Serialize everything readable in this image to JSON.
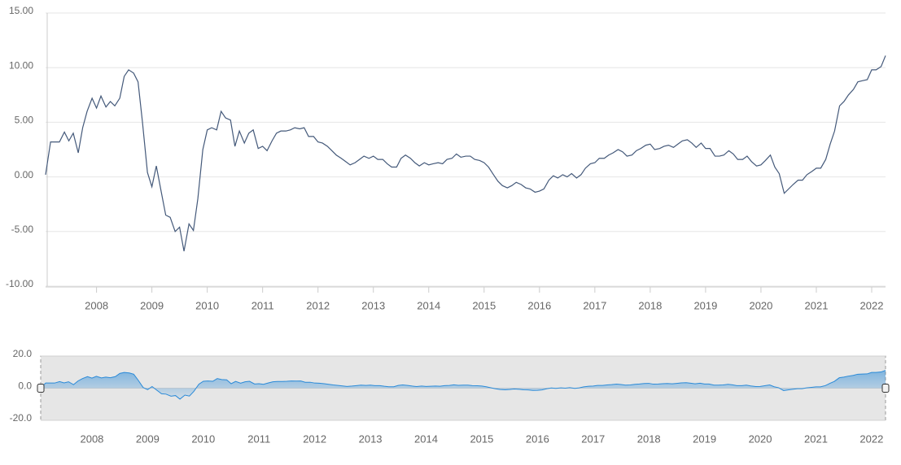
{
  "chart_data": {
    "type": "line",
    "x": [
      2007.08,
      2007.17,
      2007.25,
      2007.33,
      2007.42,
      2007.5,
      2007.58,
      2007.67,
      2007.75,
      2007.83,
      2007.92,
      2008.0,
      2008.08,
      2008.17,
      2008.25,
      2008.33,
      2008.42,
      2008.5,
      2008.58,
      2008.67,
      2008.75,
      2008.83,
      2008.92,
      2009.0,
      2009.08,
      2009.17,
      2009.25,
      2009.33,
      2009.42,
      2009.5,
      2009.58,
      2009.67,
      2009.75,
      2009.83,
      2009.92,
      2010.0,
      2010.08,
      2010.17,
      2010.25,
      2010.33,
      2010.42,
      2010.5,
      2010.58,
      2010.67,
      2010.75,
      2010.83,
      2010.92,
      2011.0,
      2011.08,
      2011.17,
      2011.25,
      2011.33,
      2011.42,
      2011.5,
      2011.58,
      2011.67,
      2011.75,
      2011.83,
      2011.92,
      2012.0,
      2012.08,
      2012.17,
      2012.25,
      2012.33,
      2012.42,
      2012.5,
      2012.58,
      2012.67,
      2012.75,
      2012.83,
      2012.92,
      2013.0,
      2013.08,
      2013.17,
      2013.25,
      2013.33,
      2013.42,
      2013.5,
      2013.58,
      2013.67,
      2013.75,
      2013.83,
      2013.92,
      2014.0,
      2014.08,
      2014.17,
      2014.25,
      2014.33,
      2014.42,
      2014.5,
      2014.58,
      2014.67,
      2014.75,
      2014.83,
      2014.92,
      2015.0,
      2015.08,
      2015.17,
      2015.25,
      2015.33,
      2015.42,
      2015.5,
      2015.58,
      2015.67,
      2015.75,
      2015.83,
      2015.92,
      2016.0,
      2016.08,
      2016.17,
      2016.25,
      2016.33,
      2016.42,
      2016.5,
      2016.58,
      2016.67,
      2016.75,
      2016.83,
      2016.92,
      2017.0,
      2017.08,
      2017.17,
      2017.25,
      2017.33,
      2017.42,
      2017.5,
      2017.58,
      2017.67,
      2017.75,
      2017.83,
      2017.92,
      2018.0,
      2018.08,
      2018.17,
      2018.25,
      2018.33,
      2018.42,
      2018.5,
      2018.58,
      2018.67,
      2018.75,
      2018.83,
      2018.92,
      2019.0,
      2019.08,
      2019.17,
      2019.25,
      2019.33,
      2019.42,
      2019.5,
      2019.58,
      2019.67,
      2019.75,
      2019.83,
      2019.92,
      2020.0,
      2020.08,
      2020.17,
      2020.25,
      2020.33,
      2020.42,
      2020.5,
      2020.58,
      2020.67,
      2020.75,
      2020.83,
      2020.92,
      2021.0,
      2021.08,
      2021.17,
      2021.25,
      2021.33,
      2021.42,
      2021.5,
      2021.58,
      2021.67,
      2021.75,
      2021.83,
      2021.92,
      2022.0,
      2022.08,
      2022.17,
      2022.25
    ],
    "series": [
      {
        "color": "#44597a",
        "values": [
          0.2,
          3.2,
          3.2,
          3.2,
          4.1,
          3.3,
          4.0,
          2.2,
          4.5,
          6.0,
          7.2,
          6.3,
          7.4,
          6.4,
          6.9,
          6.5,
          7.2,
          9.2,
          9.8,
          9.5,
          8.7,
          5.0,
          0.4,
          -0.9,
          1.0,
          -1.4,
          -3.5,
          -3.7,
          -5.0,
          -4.6,
          -6.8,
          -4.3,
          -4.9,
          -2.0,
          2.5,
          4.3,
          4.5,
          4.3,
          6.0,
          5.4,
          5.2,
          2.8,
          4.2,
          3.1,
          4.0,
          4.3,
          2.6,
          2.8,
          2.4,
          3.3,
          4.0,
          4.2,
          4.2,
          4.3,
          4.5,
          4.4,
          4.5,
          3.7,
          3.7,
          3.2,
          3.1,
          2.8,
          2.4,
          2.0,
          1.7,
          1.4,
          1.1,
          1.3,
          1.6,
          1.9,
          1.7,
          1.9,
          1.6,
          1.6,
          1.2,
          0.9,
          0.9,
          1.7,
          2.0,
          1.7,
          1.3,
          1.0,
          1.3,
          1.1,
          1.2,
          1.3,
          1.2,
          1.6,
          1.7,
          2.1,
          1.8,
          1.9,
          1.9,
          1.6,
          1.5,
          1.3,
          0.9,
          0.2,
          -0.4,
          -0.8,
          -1.0,
          -0.8,
          -0.5,
          -0.7,
          -1.0,
          -1.1,
          -1.4,
          -1.3,
          -1.1,
          -0.3,
          0.1,
          -0.1,
          0.2,
          0.0,
          0.3,
          -0.1,
          0.2,
          0.8,
          1.2,
          1.3,
          1.7,
          1.7,
          2.0,
          2.2,
          2.5,
          2.3,
          1.9,
          2.0,
          2.4,
          2.6,
          2.9,
          3.0,
          2.5,
          2.6,
          2.8,
          2.9,
          2.7,
          3.0,
          3.3,
          3.4,
          3.1,
          2.7,
          3.1,
          2.6,
          2.6,
          1.9,
          1.9,
          2.0,
          2.4,
          2.1,
          1.6,
          1.6,
          1.9,
          1.4,
          1.0,
          1.1,
          1.5,
          2.0,
          0.9,
          0.3,
          -1.5,
          -1.1,
          -0.7,
          -0.3,
          -0.3,
          0.2,
          0.5,
          0.8,
          0.8,
          1.6,
          3.0,
          4.2,
          6.5,
          6.9,
          7.5,
          8.0,
          8.7,
          8.8,
          8.9,
          9.8,
          9.8,
          10.1,
          11.1
        ]
      }
    ],
    "xlim": [
      2007.08,
      2022.25
    ],
    "xticks": [
      2008,
      2009,
      2010,
      2011,
      2012,
      2013,
      2014,
      2015,
      2016,
      2017,
      2018,
      2019,
      2020,
      2021,
      2022
    ],
    "ylim": [
      -10,
      15
    ],
    "yticks": [
      {
        "value": -10,
        "label": "-10.00"
      },
      {
        "value": -5,
        "label": "-5.00"
      },
      {
        "value": 0,
        "label": "0.00"
      },
      {
        "value": 5,
        "label": "5.00"
      },
      {
        "value": 10,
        "label": "10.00"
      },
      {
        "value": 15,
        "label": "15.00"
      }
    ],
    "grid": true,
    "navigator": {
      "color": "#2a8ad8",
      "ylim": [
        -20,
        20
      ],
      "yticks": [
        {
          "value": -20,
          "label": "-20.0"
        },
        {
          "value": 0,
          "label": "0.0"
        },
        {
          "value": 20,
          "label": "20.0"
        }
      ]
    }
  }
}
